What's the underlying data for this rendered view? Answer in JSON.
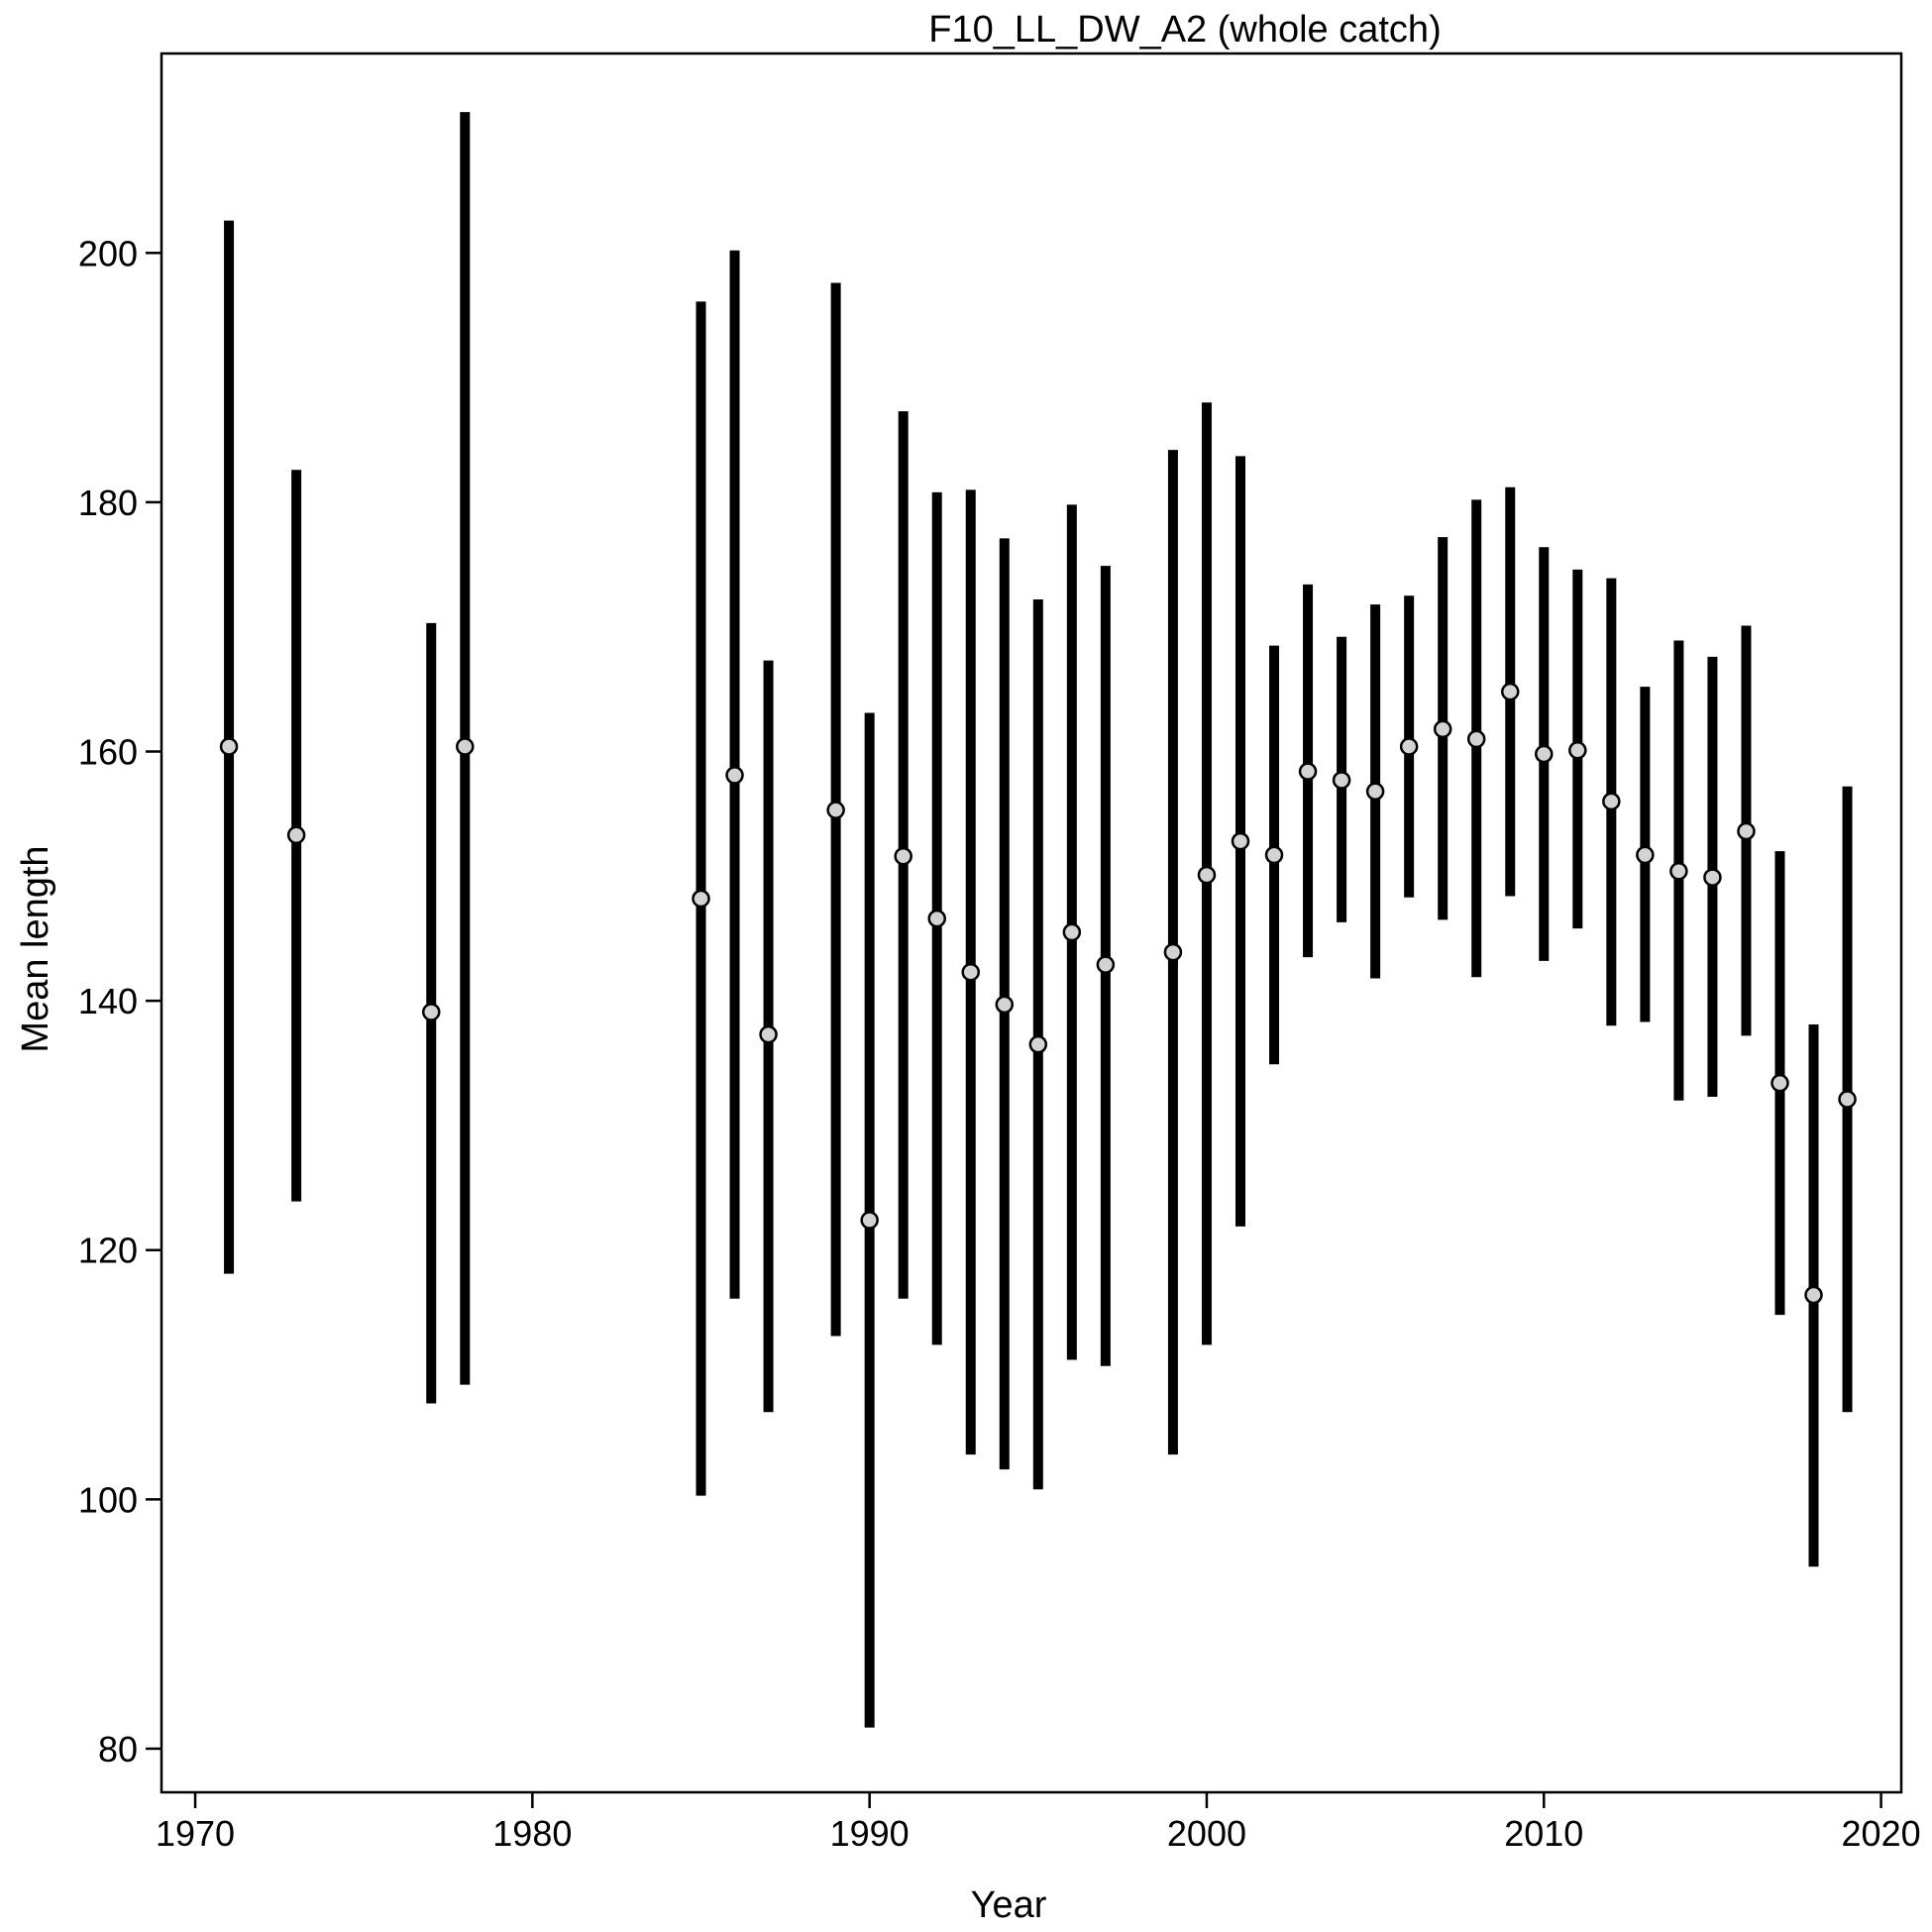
{
  "chart_data": {
    "type": "errorbar",
    "title": "F10_LL_DW_A2 (whole catch)",
    "xlabel": "Year",
    "ylabel": "Mean length",
    "xlim": [
      1969,
      2020.6
    ],
    "ylim": [
      76.5,
      216
    ],
    "xticks": [
      1970,
      1980,
      1990,
      2000,
      2010,
      2020
    ],
    "yticks": [
      80,
      100,
      120,
      140,
      160,
      180,
      200
    ],
    "grid": false,
    "legend": "none",
    "line_color": "#000000",
    "marker_fill": "#d3d3d3",
    "points": [
      {
        "x": 1971,
        "y": 160.4,
        "lo": 118.1,
        "hi": 202.6
      },
      {
        "x": 1973,
        "y": 153.3,
        "lo": 123.9,
        "hi": 182.6
      },
      {
        "x": 1977,
        "y": 139.1,
        "lo": 107.7,
        "hi": 170.3
      },
      {
        "x": 1978,
        "y": 160.4,
        "lo": 109.2,
        "hi": 211.3
      },
      {
        "x": 1985,
        "y": 148.2,
        "lo": 100.3,
        "hi": 196.1
      },
      {
        "x": 1986,
        "y": 158.1,
        "lo": 116.1,
        "hi": 200.2
      },
      {
        "x": 1987,
        "y": 137.3,
        "lo": 107.0,
        "hi": 167.3
      },
      {
        "x": 1989,
        "y": 155.3,
        "lo": 113.1,
        "hi": 197.6
      },
      {
        "x": 1990,
        "y": 122.4,
        "lo": 81.7,
        "hi": 163.1
      },
      {
        "x": 1991,
        "y": 151.6,
        "lo": 116.1,
        "hi": 187.3
      },
      {
        "x": 1992,
        "y": 146.6,
        "lo": 112.4,
        "hi": 180.8
      },
      {
        "x": 1993,
        "y": 142.3,
        "lo": 103.6,
        "hi": 181.0
      },
      {
        "x": 1994,
        "y": 139.7,
        "lo": 102.4,
        "hi": 177.1
      },
      {
        "x": 1995,
        "y": 136.5,
        "lo": 100.8,
        "hi": 172.2
      },
      {
        "x": 1996,
        "y": 145.5,
        "lo": 111.2,
        "hi": 179.8
      },
      {
        "x": 1997,
        "y": 142.9,
        "lo": 110.7,
        "hi": 174.9
      },
      {
        "x": 1999,
        "y": 143.9,
        "lo": 103.6,
        "hi": 184.2
      },
      {
        "x": 2000,
        "y": 150.1,
        "lo": 112.4,
        "hi": 188.0
      },
      {
        "x": 2001,
        "y": 152.8,
        "lo": 121.9,
        "hi": 183.7
      },
      {
        "x": 2002,
        "y": 151.7,
        "lo": 134.9,
        "hi": 168.5
      },
      {
        "x": 2003,
        "y": 158.4,
        "lo": 143.5,
        "hi": 173.4
      },
      {
        "x": 2004,
        "y": 157.7,
        "lo": 146.3,
        "hi": 169.2
      },
      {
        "x": 2005,
        "y": 156.8,
        "lo": 141.8,
        "hi": 171.8
      },
      {
        "x": 2006,
        "y": 160.4,
        "lo": 148.3,
        "hi": 172.5
      },
      {
        "x": 2007,
        "y": 161.8,
        "lo": 146.5,
        "hi": 177.2
      },
      {
        "x": 2008,
        "y": 161.0,
        "lo": 141.9,
        "hi": 180.2
      },
      {
        "x": 2009,
        "y": 164.8,
        "lo": 148.4,
        "hi": 181.2
      },
      {
        "x": 2010,
        "y": 159.8,
        "lo": 143.2,
        "hi": 176.4
      },
      {
        "x": 2011,
        "y": 160.1,
        "lo": 145.8,
        "hi": 174.6
      },
      {
        "x": 2012,
        "y": 156.0,
        "lo": 138.0,
        "hi": 173.9
      },
      {
        "x": 2013,
        "y": 151.7,
        "lo": 138.3,
        "hi": 165.2
      },
      {
        "x": 2014,
        "y": 150.4,
        "lo": 132.0,
        "hi": 168.9
      },
      {
        "x": 2015,
        "y": 149.9,
        "lo": 132.3,
        "hi": 167.6
      },
      {
        "x": 2016,
        "y": 153.6,
        "lo": 137.2,
        "hi": 170.1
      },
      {
        "x": 2017,
        "y": 133.4,
        "lo": 114.8,
        "hi": 152.0
      },
      {
        "x": 2018,
        "y": 116.4,
        "lo": 94.6,
        "hi": 138.1
      },
      {
        "x": 2019,
        "y": 132.1,
        "lo": 107.0,
        "hi": 157.2
      }
    ]
  }
}
